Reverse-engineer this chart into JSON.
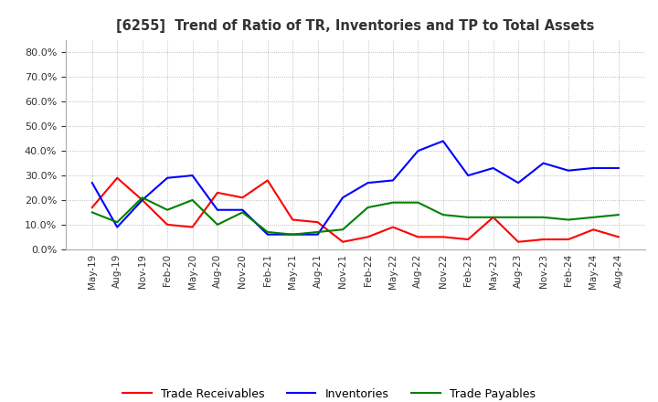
{
  "title": "[6255]  Trend of Ratio of TR, Inventories and TP to Total Assets",
  "x_labels": [
    "May-19",
    "Aug-19",
    "Nov-19",
    "Feb-20",
    "May-20",
    "Aug-20",
    "Nov-20",
    "Feb-21",
    "May-21",
    "Aug-21",
    "Nov-21",
    "Feb-22",
    "May-22",
    "Aug-22",
    "Nov-22",
    "Feb-23",
    "May-23",
    "Aug-23",
    "Nov-23",
    "Feb-24",
    "May-24",
    "Aug-24"
  ],
  "trade_receivables": [
    0.17,
    0.29,
    0.2,
    0.1,
    0.09,
    0.23,
    0.21,
    0.28,
    0.12,
    0.11,
    0.03,
    0.05,
    0.09,
    0.05,
    0.05,
    0.04,
    0.13,
    0.03,
    0.04,
    0.04,
    0.08,
    0.05
  ],
  "inventories": [
    0.27,
    0.09,
    0.2,
    0.29,
    0.3,
    0.16,
    0.16,
    0.06,
    0.06,
    0.06,
    0.21,
    0.27,
    0.28,
    0.4,
    0.44,
    0.3,
    0.33,
    0.27,
    0.35,
    0.32,
    0.33,
    0.33
  ],
  "trade_payables": [
    0.15,
    0.11,
    0.21,
    0.16,
    0.2,
    0.1,
    0.15,
    0.07,
    0.06,
    0.07,
    0.08,
    0.17,
    0.19,
    0.19,
    0.14,
    0.13,
    0.13,
    0.13,
    0.13,
    0.12,
    0.13,
    0.14
  ],
  "tr_color": "#ff0000",
  "inv_color": "#0000ff",
  "tp_color": "#008000",
  "ylim": [
    0.0,
    0.85
  ],
  "yticks": [
    0.0,
    0.1,
    0.2,
    0.3,
    0.4,
    0.5,
    0.6,
    0.7,
    0.8
  ],
  "background_color": "#ffffff",
  "plot_bg_color": "#ffffff",
  "grid_color": "#aaaaaa",
  "legend_labels": [
    "Trade Receivables",
    "Inventories",
    "Trade Payables"
  ]
}
